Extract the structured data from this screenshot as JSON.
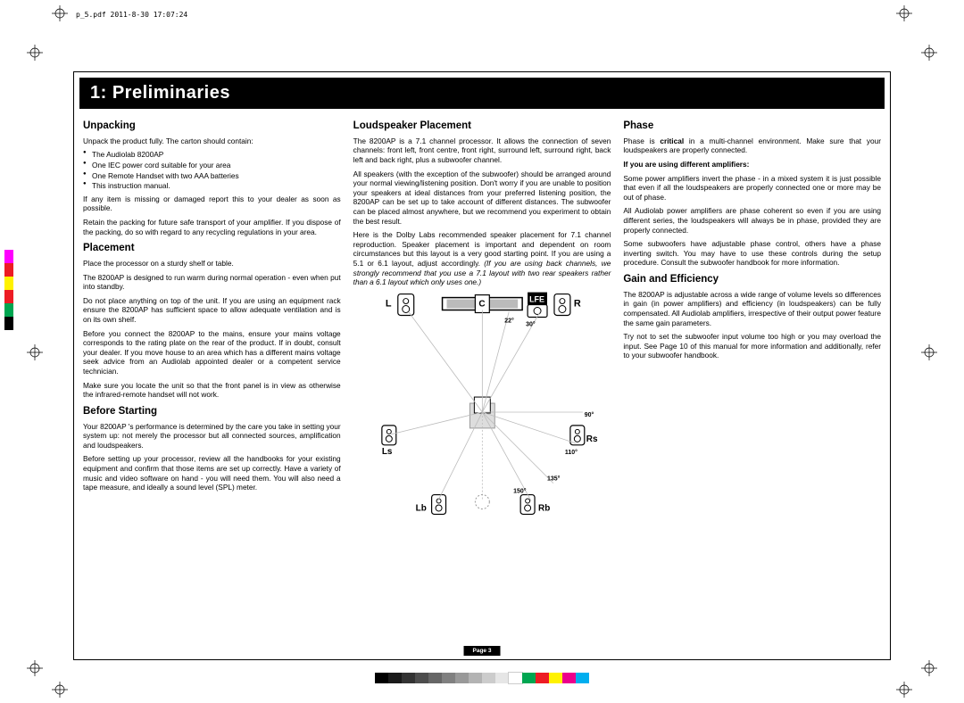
{
  "header_info": "p_5.pdf   2011-8-30   17:07:24",
  "title": "1: Preliminaries",
  "page_label": "Page 3",
  "col1": {
    "h_unpacking": "Unpacking",
    "p_unpack_intro": "Unpack the product fully. The carton should contain:",
    "items": [
      "The Audiolab 8200AP",
      "One IEC power cord suitable for your area",
      "One Remote Handset with two AAA batteries",
      "This instruction manual."
    ],
    "p_unpack_missing": "If any item is missing or damaged report this to your dealer as soon as possible.",
    "p_unpack_retain": "Retain the packing for future safe transport of your amplifier. If you dispose of the packing, do so with regard to any recycling regulations in your area.",
    "h_placement": "Placement",
    "p_place_1": "Place the processor on a sturdy shelf or table.",
    "p_place_2": "The 8200AP is designed to run warm during normal operation - even when put into standby.",
    "p_place_3": "Do not place anything on top of the unit. If you are using an equipment rack ensure the 8200AP has sufficient space to allow adequate ventilation and is on its own shelf.",
    "p_place_4": "Before you connect the 8200AP to the mains, ensure your mains voltage corresponds to the rating plate on the rear of the product. If in doubt, consult your dealer. If you move house to an area which has a different mains voltage seek advice from an Audiolab appointed dealer or a competent service technician.",
    "p_place_5": "Make sure you locate the unit so that the front panel is in view as otherwise the infrared-remote handset will not work.",
    "h_before": "Before Starting",
    "p_before_1": "Your 8200AP 's performance is determined by the care you take in setting your system up: not merely the processor but all connected sources, amplification and loudspeakers.",
    "p_before_2": "Before setting up your processor, review all the handbooks for your existing equipment and confirm that those items are set up correctly. Have a variety of music and video software on hand - you will need them. You will also need a tape measure, and ideally a sound level (SPL) meter."
  },
  "col2": {
    "h_loud": "Loudspeaker Placement",
    "p_loud_1": "The 8200AP is a 7.1 channel processor. It allows the connection of seven channels: front left, front centre, front right, surround left, surround right, back left and back right, plus a subwoofer channel.",
    "p_loud_2": "All speakers (with the exception of the subwoofer) should be arranged around your normal viewing/listening position. Don't worry if you are unable to position your speakers at ideal distances from your preferred listening position, the 8200AP can be set up to take account of different distances. The subwoofer can be placed almost anywhere, but we recommend you experiment to obtain the best result.",
    "p_loud_3a": "Here is the Dolby Labs recommended speaker placement for 7.1 channel reproduction. Speaker placement is important and dependent on room circumstances but this layout is a very good starting point. If you are using a 5.1 or 6.1 layout, adjust accordingly. ",
    "p_loud_3b": "(If you are using back channels, we strongly recommend that you use a 7.1 layout with two rear speakers rather than a 6.1 layout which only uses one.)",
    "diagram": {
      "labels": {
        "L": "L",
        "C": "C",
        "LFE": "LFE",
        "R": "R",
        "Ls": "Ls",
        "Rs": "Rs",
        "Lb": "Lb",
        "Rb": "Rb"
      },
      "angles": {
        "a22": "22°",
        "a30": "30°",
        "a90": "90°",
        "a110": "110°",
        "a135": "135°",
        "a150": "150°"
      }
    }
  },
  "col3": {
    "h_phase": "Phase",
    "p_phase_1a": "Phase is ",
    "p_phase_1b": "critical",
    "p_phase_1c": " in a multi-channel environment. Make sure that your loudspeakers are properly connected.",
    "p_phase_bold": "If you are using different amplifiers:",
    "p_phase_2": "Some power amplifiers invert the phase - in a mixed system it is just possible that even if all the loudspeakers are properly connected one or more may be out of phase.",
    "p_phase_3": "All Audiolab power amplifiers are phase coherent so even if you are using different series, the loudspeakers will always be in phase, provided they are properly connected.",
    "p_phase_4": "Some subwoofers have adjustable phase control, others have a phase inverting switch. You may have to use these controls during the setup procedure. Consult the subwoofer handbook for more information.",
    "h_gain": "Gain and Efficiency",
    "p_gain_1": "The 8200AP is adjustable across a wide range of volume levels so differences in gain (in power amplifiers) and efficiency (in loudspeakers) can be fully compensated. All Audiolab amplifiers, irrespective of their output power feature the same gain parameters.",
    "p_gain_2": "Try not to set the subwoofer input volume too high or you may overload the input. See Page 10 of this manual for more information and additionally, refer to your subwoofer handbook."
  },
  "colors": {
    "left_strip": [
      "#ff00ff",
      "#ec1c24",
      "#fff200",
      "#ed1c24",
      "#00a651",
      "#000000"
    ],
    "bottom_bar": [
      "#000000",
      "#1a1a1a",
      "#333333",
      "#4d4d4d",
      "#666666",
      "#808080",
      "#999999",
      "#b3b3b3",
      "#cccccc",
      "#e6e6e6",
      "#ffffff",
      "#00a651",
      "#ed1c24",
      "#fff200",
      "#ec008c",
      "#00aeef"
    ]
  }
}
